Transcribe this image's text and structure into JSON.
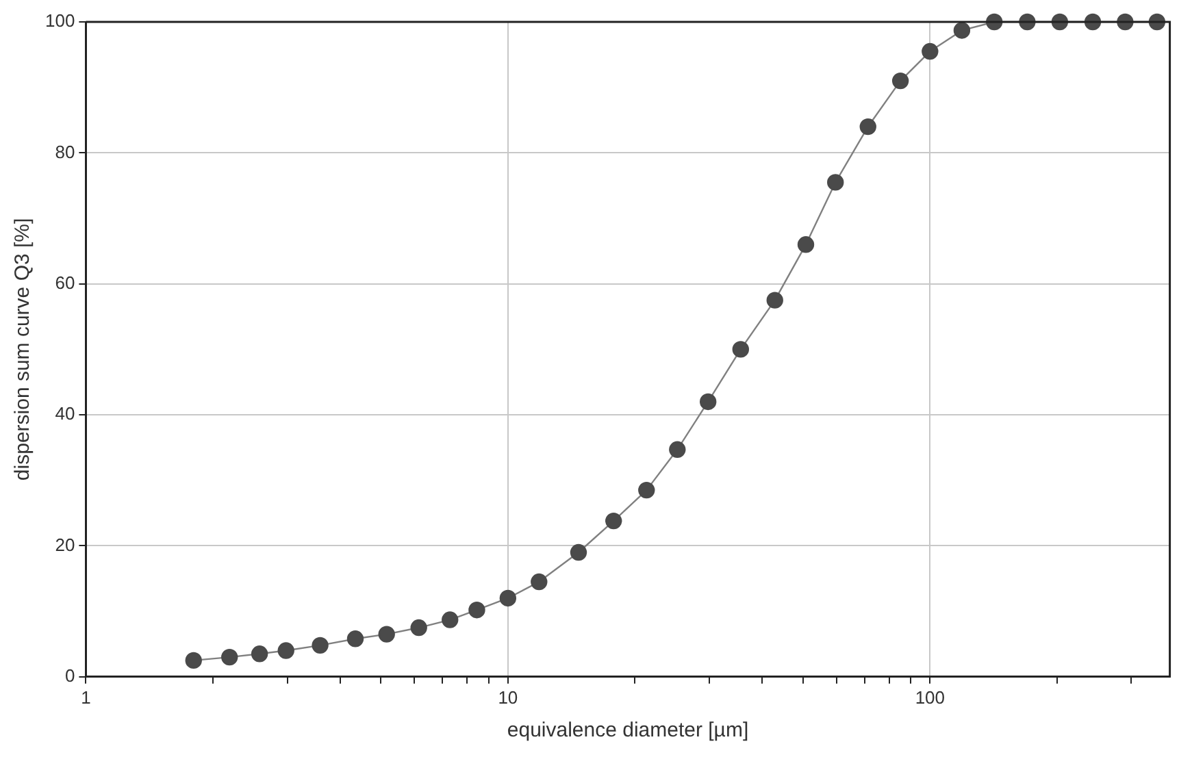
{
  "chart_data": {
    "type": "line",
    "xlabel": "equivalence diameter [µm]",
    "ylabel": "dispersion sum curve Q3 [%]",
    "log": "x",
    "xlim": [
      1,
      370
    ],
    "ylim": [
      0,
      100
    ],
    "xticks": [
      1,
      {
        "value": 2,
        "label": null
      },
      {
        "value": 3,
        "label": null
      },
      {
        "value": 4,
        "label": null
      },
      {
        "value": 5,
        "label": null
      },
      {
        "value": 6,
        "label": null
      },
      {
        "value": 7,
        "label": null
      },
      {
        "value": 8,
        "label": null
      },
      {
        "value": 9,
        "label": null
      },
      10,
      {
        "value": 20,
        "label": null
      },
      {
        "value": 30,
        "label": null
      },
      {
        "value": 40,
        "label": null
      },
      {
        "value": 50,
        "label": null
      },
      {
        "value": 60,
        "label": null
      },
      {
        "value": 70,
        "label": null
      },
      {
        "value": 80,
        "label": null
      },
      {
        "value": 90,
        "label": null
      },
      100,
      {
        "value": 200,
        "label": null
      },
      {
        "value": 300,
        "label": null
      }
    ],
    "yticks": [
      0,
      20,
      40,
      60,
      80,
      100
    ],
    "grid": true,
    "legend": false,
    "marker": "circle",
    "line_style": "solid",
    "series": [
      {
        "color": "#4a4a4a",
        "x": [
          1.8,
          2.19,
          2.58,
          2.98,
          3.59,
          4.35,
          5.16,
          6.15,
          7.29,
          8.44,
          10,
          11.85,
          14.7,
          17.8,
          21.3,
          25.2,
          29.8,
          35.6,
          42.9,
          50.8,
          59.7,
          71.3,
          85.1,
          100,
          119,
          142,
          170,
          203,
          243,
          290,
          345
        ],
        "values": [
          2.5,
          3,
          3.5,
          4,
          4.8,
          5.8,
          6.5,
          7.5,
          8.7,
          10.2,
          12,
          14.5,
          19,
          23.8,
          28.5,
          34.7,
          42,
          50,
          57.5,
          66,
          75.5,
          84,
          91,
          95.5,
          98.7,
          100,
          100,
          100,
          100,
          100,
          100
        ]
      }
    ]
  }
}
